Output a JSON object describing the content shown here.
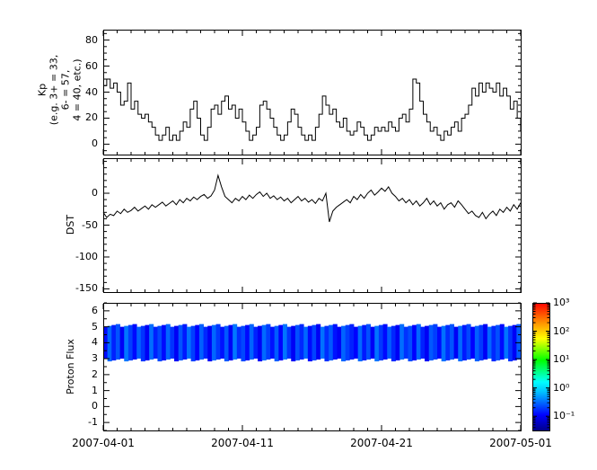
{
  "figure": {
    "background": "#ffffff",
    "line_color": "#000000",
    "xaxis": {
      "tick_labels": [
        "2007-04-01",
        "2007-04-11",
        "2007-04-21",
        "2007-05-01"
      ],
      "tick_positions_days": [
        0,
        10,
        20,
        30
      ],
      "minor_step_days": 1,
      "range_days": [
        0,
        30
      ]
    }
  },
  "chart_data": [
    {
      "type": "line",
      "name": "Kp",
      "style": "step",
      "ylabel": "Kp\n(e.g. 3+ = 33,\n6- = 57,\n4 = 40, etc.)",
      "ylim": [
        -8,
        88
      ],
      "yticks": [
        80,
        60,
        40,
        20,
        0
      ],
      "ytick_labels": [
        "80",
        "60",
        "40",
        "20",
        "0"
      ],
      "y_minor_step": 5,
      "x_start_days": 0,
      "x_step_days": 0.25,
      "values": [
        45,
        50,
        43,
        47,
        40,
        30,
        33,
        47,
        27,
        33,
        23,
        20,
        23,
        17,
        13,
        7,
        3,
        7,
        13,
        3,
        7,
        3,
        10,
        17,
        13,
        27,
        33,
        20,
        7,
        3,
        13,
        27,
        30,
        23,
        33,
        37,
        27,
        30,
        20,
        27,
        17,
        10,
        3,
        7,
        13,
        30,
        33,
        27,
        20,
        13,
        7,
        3,
        7,
        17,
        27,
        23,
        13,
        7,
        3,
        7,
        3,
        13,
        23,
        37,
        30,
        23,
        27,
        17,
        13,
        20,
        10,
        7,
        10,
        17,
        13,
        7,
        3,
        7,
        13,
        10,
        13,
        10,
        17,
        13,
        10,
        20,
        23,
        17,
        27,
        50,
        47,
        33,
        23,
        17,
        10,
        13,
        7,
        3,
        10,
        7,
        13,
        17,
        10,
        20,
        23,
        30,
        43,
        37,
        47,
        40,
        47,
        43,
        40,
        47,
        37,
        43,
        37,
        27,
        33,
        20,
        10,
        27
      ]
    },
    {
      "type": "line",
      "name": "DST",
      "style": "linear",
      "ylabel": "DST",
      "ylim": [
        -155,
        55
      ],
      "yticks": [
        0,
        -50,
        -100,
        -150
      ],
      "ytick_labels": [
        "0",
        "-50",
        "-100",
        "-150"
      ],
      "y_minor_step": 10,
      "x_start_days": 0,
      "x_step_days": 0.25,
      "values": [
        -30,
        -38,
        -33,
        -35,
        -28,
        -32,
        -25,
        -30,
        -27,
        -22,
        -28,
        -24,
        -20,
        -25,
        -18,
        -22,
        -18,
        -14,
        -20,
        -16,
        -12,
        -18,
        -10,
        -15,
        -8,
        -12,
        -6,
        -10,
        -5,
        -2,
        -8,
        -4,
        5,
        28,
        10,
        -5,
        -10,
        -15,
        -8,
        -12,
        -5,
        -10,
        -3,
        -8,
        -2,
        2,
        -5,
        0,
        -8,
        -4,
        -10,
        -6,
        -12,
        -8,
        -15,
        -10,
        -5,
        -12,
        -8,
        -14,
        -10,
        -16,
        -8,
        -12,
        0,
        -45,
        -28,
        -22,
        -18,
        -14,
        -10,
        -15,
        -5,
        -10,
        -2,
        -8,
        0,
        5,
        -3,
        2,
        8,
        3,
        10,
        0,
        -5,
        -12,
        -8,
        -15,
        -10,
        -18,
        -12,
        -20,
        -15,
        -8,
        -18,
        -12,
        -20,
        -15,
        -25,
        -18,
        -15,
        -22,
        -12,
        -18,
        -25,
        -32,
        -28,
        -35,
        -38,
        -30,
        -40,
        -33,
        -28,
        -35,
        -25,
        -30,
        -22,
        -28,
        -18,
        -25,
        -15,
        -20
      ]
    },
    {
      "type": "heatmap",
      "name": "Proton Flux",
      "ylabel": "Proton Flux",
      "ylim": [
        -1.5,
        6.5
      ],
      "yticks": [
        6,
        5,
        4,
        3,
        2,
        1,
        0,
        -1
      ],
      "ytick_labels": [
        "6",
        "5",
        "4",
        "3",
        "2",
        "1",
        "0",
        "-1"
      ],
      "y_minor_step": 0.5,
      "band_y": [
        3,
        5
      ],
      "colormap": "jet",
      "scale": "log",
      "clim_exponents": [
        -1.5,
        3
      ],
      "colorbar_tick_exponents": [
        3,
        2,
        1,
        0,
        -1
      ],
      "colorbar_tick_labels": [
        "10³",
        "10²",
        "10¹",
        "10⁰",
        "10⁻¹"
      ],
      "columns": [
        0.12,
        0.3,
        0.15,
        0.25,
        0.1,
        0.35,
        0.2,
        0.12,
        0.28,
        0.18,
        0.1,
        0.32,
        0.15,
        0.22,
        0.12,
        0.3,
        0.18,
        0.1,
        0.25,
        0.14,
        0.33,
        0.2,
        0.11,
        0.28,
        0.16,
        0.1,
        0.3,
        0.19,
        0.13,
        0.26,
        0.1,
        0.35,
        0.17,
        0.22,
        0.12,
        0.29,
        0.15,
        0.1,
        0.31,
        0.2,
        0.13,
        0.27,
        0.11,
        0.34,
        0.18,
        0.1,
        0.24,
        0.16,
        0.3,
        0.12,
        0.21,
        0.1,
        0.33,
        0.17,
        0.26,
        0.13,
        0.1,
        0.29,
        0.2,
        0.15,
        0.11,
        0.31,
        0.14,
        0.24,
        0.1,
        0.34,
        0.19,
        0.12,
        0.27,
        0.16,
        0.1,
        0.32,
        0.18,
        0.23,
        0.11,
        0.3,
        0.15,
        0.1,
        0.26,
        0.2,
        0.12,
        0.33,
        0.17,
        0.25,
        0.1,
        0.31,
        0.14,
        0.22,
        0.11,
        0.28,
        0.19,
        0.1,
        0.3,
        0.16,
        0.24,
        0.12,
        0.34,
        0.18,
        0.1,
        0.27
      ]
    }
  ]
}
